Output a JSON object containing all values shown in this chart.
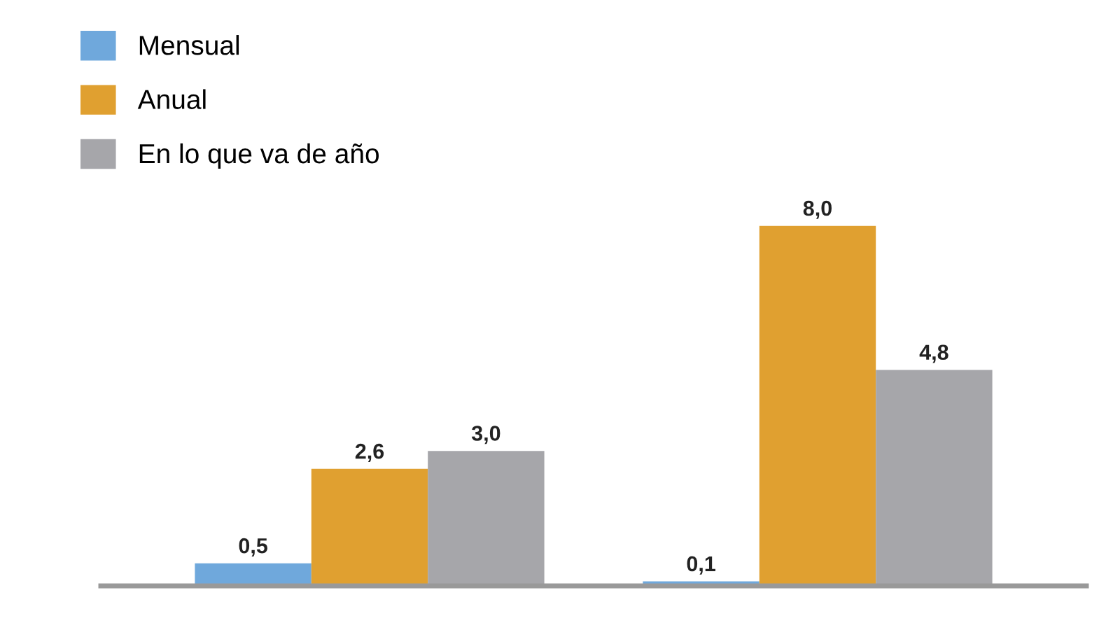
{
  "chart_data": {
    "type": "bar",
    "categories": [
      null,
      null
    ],
    "series": [
      {
        "name": "Mensual",
        "color": "#6fa8dc",
        "values": [
          0.5,
          0.1
        ],
        "value_labels": [
          "0,5",
          "0,1"
        ]
      },
      {
        "name": "Anual",
        "color": "#e0a030",
        "values": [
          2.6,
          8.0
        ],
        "value_labels": [
          "2,6",
          "8,0"
        ]
      },
      {
        "name": "En lo que va de año",
        "color": "#a6a6aa",
        "values": [
          3.0,
          4.8
        ],
        "value_labels": [
          "3,0",
          "4,8"
        ]
      }
    ],
    "legend": "top left",
    "grid": false,
    "tick_labels": false
  }
}
